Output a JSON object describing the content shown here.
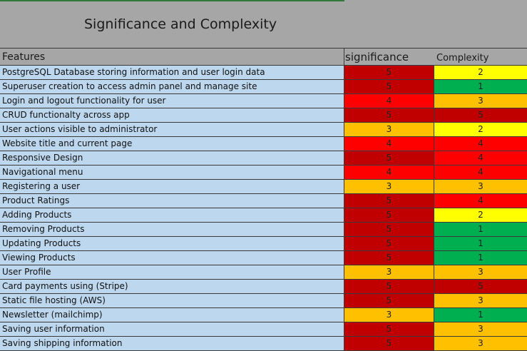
{
  "title": "Significance and Complexity",
  "headers": {
    "features": "Features",
    "significance": "significance",
    "complexity": "Complexity"
  },
  "colors": {
    "dark_red": "#c00000",
    "red": "#ff0000",
    "orange": "#ffc000",
    "yellow": "#ffff00",
    "green": "#00b050",
    "feature_fill": "#bdd7ee",
    "header_fill": "#a6a6a6"
  },
  "rows": [
    {
      "feature": "PostgreSQL Database storing information and user login data",
      "significance": "5",
      "complexity": "2",
      "sig_color": "#c00000",
      "comp_color": "#ffff00"
    },
    {
      "feature": "Superuser creation to access admin panel and manage site",
      "significance": "5",
      "complexity": "1",
      "sig_color": "#c00000",
      "comp_color": "#00b050"
    },
    {
      "feature": "Login and logout functionality for user",
      "significance": "4",
      "complexity": "3",
      "sig_color": "#ff0000",
      "comp_color": "#ffc000"
    },
    {
      "feature": "CRUD functionalty across app",
      "significance": "5",
      "complexity": "5",
      "sig_color": "#c00000",
      "comp_color": "#c00000"
    },
    {
      "feature": "User actions visible to administrator",
      "significance": "3",
      "complexity": "2",
      "sig_color": "#ffc000",
      "comp_color": "#ffff00"
    },
    {
      "feature": "Website title and current page",
      "significance": "4",
      "complexity": "4",
      "sig_color": "#ff0000",
      "comp_color": "#ff0000"
    },
    {
      "feature": "Responsive Design",
      "significance": "5",
      "complexity": "4",
      "sig_color": "#c00000",
      "comp_color": "#ff0000"
    },
    {
      "feature": "Navigational menu",
      "significance": "4",
      "complexity": "4",
      "sig_color": "#ff0000",
      "comp_color": "#ff0000"
    },
    {
      "feature": "Registering a user",
      "significance": "3",
      "complexity": "3",
      "sig_color": "#ffc000",
      "comp_color": "#ffc000"
    },
    {
      "feature": "Product Ratings",
      "significance": "5",
      "complexity": "4",
      "sig_color": "#c00000",
      "comp_color": "#ff0000"
    },
    {
      "feature": "Adding Products",
      "significance": "5",
      "complexity": "2",
      "sig_color": "#c00000",
      "comp_color": "#ffff00"
    },
    {
      "feature": "Removing Products",
      "significance": "5",
      "complexity": "1",
      "sig_color": "#c00000",
      "comp_color": "#00b050"
    },
    {
      "feature": "Updating Products",
      "significance": "5",
      "complexity": "1",
      "sig_color": "#c00000",
      "comp_color": "#00b050"
    },
    {
      "feature": "Viewing Products",
      "significance": "5",
      "complexity": "1",
      "sig_color": "#c00000",
      "comp_color": "#00b050"
    },
    {
      "feature": "User Profile",
      "significance": "3",
      "complexity": "3",
      "sig_color": "#ffc000",
      "comp_color": "#ffc000"
    },
    {
      "feature": "Card payments using (Stripe)",
      "significance": "5",
      "complexity": "5",
      "sig_color": "#c00000",
      "comp_color": "#c00000"
    },
    {
      "feature": "Static file hosting (AWS)",
      "significance": "5",
      "complexity": "3",
      "sig_color": "#c00000",
      "comp_color": "#ffc000"
    },
    {
      "feature": "Newsletter (mailchimp)",
      "significance": "3",
      "complexity": "1",
      "sig_color": "#ffc000",
      "comp_color": "#00b050"
    },
    {
      "feature": "Saving user information",
      "significance": "5",
      "complexity": "3",
      "sig_color": "#c00000",
      "comp_color": "#ffc000"
    },
    {
      "feature": "Saving shipping information",
      "significance": "5",
      "complexity": "3",
      "sig_color": "#c00000",
      "comp_color": "#ffc000"
    }
  ]
}
